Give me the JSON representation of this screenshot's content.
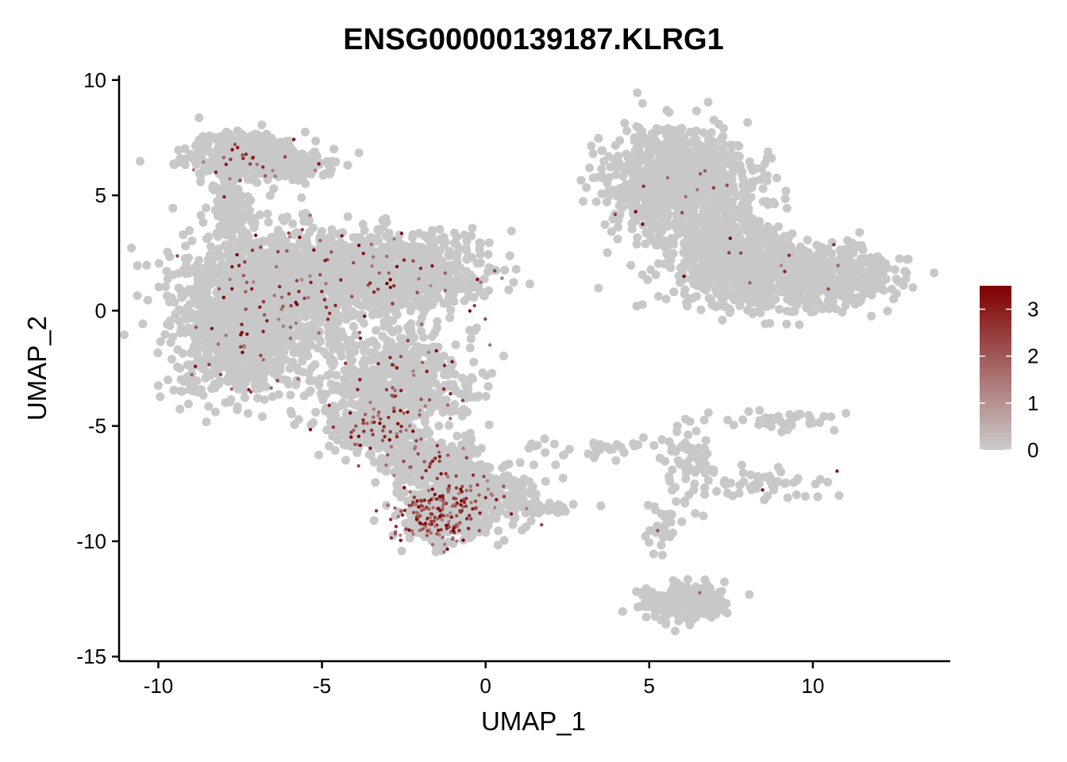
{
  "chart_data": {
    "type": "scatter",
    "title": "ENSG00000139187.KLRG1",
    "xlabel": "UMAP_1",
    "ylabel": "UMAP_2",
    "xlim": [
      -11.2,
      14.2
    ],
    "ylim": [
      -15.2,
      10.2
    ],
    "x_ticks": [
      -10,
      -5,
      0,
      5,
      10
    ],
    "x_tick_labels": [
      "-10",
      "-5",
      "0",
      "5",
      "10"
    ],
    "y_ticks": [
      10,
      5,
      0,
      -5,
      -10,
      -15
    ],
    "y_tick_labels": [
      "10",
      "5",
      "0",
      "-5",
      "-10",
      "-15"
    ],
    "grid": false,
    "legend": {
      "placement": "right",
      "min": 0,
      "max": 3.5,
      "ticks": [
        0,
        1,
        2,
        3
      ],
      "tick_labels": [
        "0",
        "1",
        "2",
        "3"
      ],
      "color_low": "#cccccc",
      "color_high": "#7f0000"
    },
    "background_color": "#c8c8c8",
    "clusters": [
      {
        "cx": -7.3,
        "cy": 6.8,
        "sx": 1.2,
        "sy": 0.7,
        "weight": 0.04,
        "expr": 0.05
      },
      {
        "cx": -6.2,
        "cy": 6.3,
        "sx": 1.0,
        "sy": 0.45,
        "weight": 0.02,
        "expr": 0.02
      },
      {
        "cx": -7.8,
        "cy": 4.6,
        "sx": 0.45,
        "sy": 0.9,
        "weight": 0.01,
        "expr": 0.03
      },
      {
        "cx": -6.5,
        "cy": 1.0,
        "sx": 2.0,
        "sy": 1.6,
        "weight": 0.17,
        "expr": 0.05
      },
      {
        "cx": -2.8,
        "cy": 1.6,
        "sx": 1.9,
        "sy": 1.1,
        "weight": 0.1,
        "expr": 0.05
      },
      {
        "cx": -7.4,
        "cy": -1.8,
        "sx": 1.3,
        "sy": 1.3,
        "weight": 0.06,
        "expr": 0.04
      },
      {
        "cx": -2.6,
        "cy": -3.0,
        "sx": 1.5,
        "sy": 1.3,
        "weight": 0.06,
        "expr": 0.09
      },
      {
        "cx": -3.2,
        "cy": -5.0,
        "sx": 1.2,
        "sy": 0.8,
        "weight": 0.04,
        "expr": 0.12
      },
      {
        "cx": -1.8,
        "cy": -6.5,
        "sx": 1.1,
        "sy": 0.6,
        "weight": 0.03,
        "expr": 0.1
      },
      {
        "cx": -1.4,
        "cy": -8.9,
        "sx": 0.9,
        "sy": 0.8,
        "weight": 0.05,
        "expr": 0.35
      },
      {
        "cx": -0.2,
        "cy": -8.0,
        "sx": 1.1,
        "sy": 0.9,
        "weight": 0.04,
        "expr": 0.08
      },
      {
        "cx": 6.0,
        "cy": 5.6,
        "sx": 1.5,
        "sy": 1.5,
        "weight": 0.11,
        "expr": 0.01
      },
      {
        "cx": 9.2,
        "cy": 1.5,
        "sx": 2.1,
        "sy": 0.9,
        "weight": 0.11,
        "expr": 0.01
      },
      {
        "cx": 7.3,
        "cy": 3.0,
        "sx": 1.2,
        "sy": 0.9,
        "weight": 0.04,
        "expr": 0.01
      },
      {
        "cx": 6.0,
        "cy": -12.6,
        "sx": 0.85,
        "sy": 0.5,
        "weight": 0.025,
        "expr": 0.01
      },
      {
        "cx": 6.2,
        "cy": -6.5,
        "sx": 0.6,
        "sy": 1.2,
        "weight": 0.008,
        "expr": 0.01
      },
      {
        "cx": 8.5,
        "cy": -7.6,
        "sx": 1.3,
        "sy": 0.45,
        "weight": 0.006,
        "expr": 0.03
      },
      {
        "cx": 8.8,
        "cy": -4.8,
        "sx": 1.3,
        "sy": 0.3,
        "weight": 0.004,
        "expr": 0.01
      },
      {
        "cx": 3.2,
        "cy": -6.0,
        "sx": 1.6,
        "sy": 0.35,
        "weight": 0.003,
        "expr": 0.01
      },
      {
        "cx": 2.0,
        "cy": -8.5,
        "sx": 0.8,
        "sy": 0.3,
        "weight": 0.002,
        "expr": 0.02
      },
      {
        "cx": 5.4,
        "cy": -9.5,
        "sx": 0.3,
        "sy": 0.6,
        "weight": 0.003,
        "expr": 0.03
      }
    ]
  }
}
